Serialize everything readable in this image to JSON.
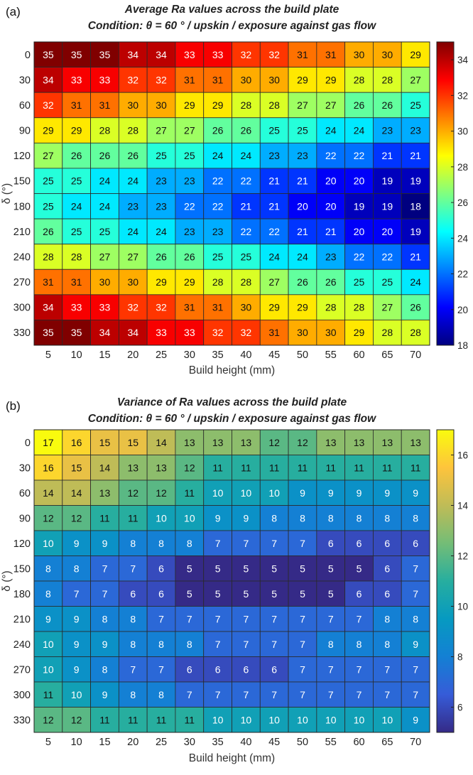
{
  "chart_data": [
    {
      "type": "heatmap",
      "panel_label": "(a)",
      "title": "Average Ra values across the build plate",
      "subtitle": "Condition: θ = 60 ° / upskin / exposure against gas flow",
      "xlabel": "Build height (mm)",
      "ylabel": "δ (°)",
      "x": [
        5,
        10,
        15,
        20,
        25,
        30,
        35,
        40,
        45,
        50,
        55,
        60,
        65,
        70
      ],
      "y": [
        0,
        30,
        60,
        90,
        120,
        150,
        180,
        210,
        240,
        270,
        300,
        330
      ],
      "colormap": "jet",
      "clim": [
        18,
        35
      ],
      "colorbar_ticks": [
        18,
        20,
        22,
        24,
        26,
        28,
        30,
        32,
        34
      ],
      "values": [
        [
          35,
          35,
          35,
          34,
          34,
          33,
          33,
          32,
          32,
          31,
          31,
          30,
          30,
          29
        ],
        [
          34,
          33,
          33,
          32,
          32,
          31,
          31,
          30,
          30,
          29,
          29,
          28,
          28,
          27
        ],
        [
          32,
          31,
          31,
          30,
          30,
          29,
          29,
          28,
          28,
          27,
          27,
          26,
          26,
          25
        ],
        [
          29,
          29,
          28,
          28,
          27,
          27,
          26,
          26,
          25,
          25,
          24,
          24,
          23,
          23
        ],
        [
          27,
          26,
          26,
          26,
          25,
          25,
          24,
          24,
          23,
          23,
          22,
          22,
          21,
          21
        ],
        [
          25,
          25,
          24,
          24,
          23,
          23,
          22,
          22,
          21,
          21,
          20,
          20,
          19,
          19
        ],
        [
          25,
          24,
          24,
          23,
          23,
          22,
          22,
          21,
          21,
          20,
          20,
          19,
          19,
          18
        ],
        [
          26,
          25,
          25,
          24,
          24,
          23,
          23,
          22,
          22,
          21,
          21,
          20,
          20,
          19
        ],
        [
          28,
          28,
          27,
          27,
          26,
          26,
          25,
          25,
          24,
          24,
          23,
          22,
          22,
          21
        ],
        [
          31,
          31,
          30,
          30,
          29,
          29,
          28,
          28,
          27,
          26,
          26,
          25,
          25,
          24
        ],
        [
          34,
          33,
          33,
          32,
          32,
          31,
          31,
          30,
          29,
          29,
          28,
          28,
          27,
          26
        ],
        [
          35,
          35,
          34,
          34,
          33,
          33,
          32,
          32,
          31,
          30,
          30,
          29,
          28,
          28
        ]
      ]
    },
    {
      "type": "heatmap",
      "panel_label": "(b)",
      "title": "Variance of Ra values across the build plate",
      "subtitle": "Condition: θ = 60 ° / upskin / exposure against gas flow",
      "xlabel": "Build height (mm)",
      "ylabel": "δ (°)",
      "x": [
        5,
        10,
        15,
        20,
        25,
        30,
        35,
        40,
        45,
        50,
        55,
        60,
        65,
        70
      ],
      "y": [
        0,
        30,
        60,
        90,
        120,
        150,
        180,
        210,
        240,
        270,
        300,
        330
      ],
      "colormap": "parula",
      "clim": [
        5,
        17
      ],
      "colorbar_ticks": [
        6,
        8,
        10,
        12,
        14,
        16
      ],
      "values": [
        [
          17,
          16,
          15,
          15,
          14,
          13,
          13,
          13,
          12,
          12,
          13,
          13,
          13,
          13
        ],
        [
          16,
          15,
          14,
          13,
          13,
          12,
          11,
          11,
          11,
          11,
          11,
          11,
          11,
          11
        ],
        [
          14,
          14,
          13,
          12,
          12,
          11,
          10,
          10,
          10,
          9,
          9,
          9,
          9,
          9
        ],
        [
          12,
          12,
          11,
          11,
          10,
          10,
          9,
          9,
          8,
          8,
          8,
          8,
          8,
          8
        ],
        [
          10,
          9,
          9,
          8,
          8,
          8,
          7,
          7,
          7,
          7,
          6,
          6,
          6,
          6
        ],
        [
          8,
          8,
          7,
          7,
          6,
          5,
          5,
          5,
          5,
          5,
          5,
          5,
          6,
          7
        ],
        [
          8,
          7,
          7,
          6,
          6,
          5,
          5,
          5,
          5,
          5,
          5,
          6,
          6,
          7
        ],
        [
          9,
          9,
          8,
          8,
          7,
          7,
          7,
          7,
          7,
          7,
          7,
          7,
          8,
          8
        ],
        [
          10,
          9,
          9,
          8,
          8,
          8,
          7,
          7,
          7,
          7,
          8,
          8,
          8,
          9
        ],
        [
          10,
          9,
          8,
          7,
          7,
          6,
          6,
          6,
          6,
          7,
          7,
          7,
          7,
          7
        ],
        [
          11,
          10,
          9,
          8,
          8,
          7,
          7,
          7,
          7,
          7,
          7,
          7,
          7,
          7
        ],
        [
          12,
          12,
          11,
          11,
          11,
          11,
          10,
          10,
          10,
          10,
          10,
          10,
          10,
          9
        ]
      ]
    }
  ]
}
